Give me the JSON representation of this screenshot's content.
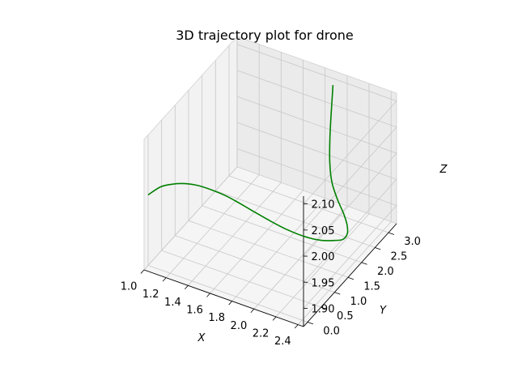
{
  "chart_data": {
    "type": "line",
    "title": "3D trajectory plot for drone",
    "xlabel": "X",
    "ylabel": "Y",
    "zlabel": "Z",
    "xlim": [
      1.0,
      2.45
    ],
    "ylim": [
      -0.15,
      3.3
    ],
    "zlim": [
      1.865,
      2.115
    ],
    "x_ticks": [
      "1.0",
      "1.2",
      "1.4",
      "1.6",
      "1.8",
      "2.0",
      "2.2",
      "2.4"
    ],
    "y_ticks": [
      "0.0",
      "0.5",
      "1.0",
      "1.5",
      "2.0",
      "2.5",
      "3.0"
    ],
    "z_ticks": [
      "1.90",
      "1.95",
      "2.00",
      "2.05",
      "2.10"
    ],
    "grid": true,
    "series": [
      {
        "color": "#008000",
        "points": [
          {
            "x": 1.0,
            "y": 0.0,
            "z": 2.0
          },
          {
            "x": 1.1,
            "y": 0.05,
            "z": 2.02
          },
          {
            "x": 1.2,
            "y": 0.1,
            "z": 2.03
          },
          {
            "x": 1.3,
            "y": 0.16,
            "z": 2.035
          },
          {
            "x": 1.4,
            "y": 0.24,
            "z": 2.034
          },
          {
            "x": 1.5,
            "y": 0.33,
            "z": 2.028
          },
          {
            "x": 1.6,
            "y": 0.44,
            "z": 2.018
          },
          {
            "x": 1.7,
            "y": 0.57,
            "z": 2.003
          },
          {
            "x": 1.8,
            "y": 0.72,
            "z": 1.985
          },
          {
            "x": 1.9,
            "y": 0.9,
            "z": 1.965
          },
          {
            "x": 2.0,
            "y": 1.1,
            "z": 1.945
          },
          {
            "x": 2.1,
            "y": 1.35,
            "z": 1.925
          },
          {
            "x": 2.18,
            "y": 1.6,
            "z": 1.91
          },
          {
            "x": 2.24,
            "y": 1.85,
            "z": 1.9
          },
          {
            "x": 2.27,
            "y": 2.05,
            "z": 1.893
          },
          {
            "x": 2.26,
            "y": 2.25,
            "z": 1.892
          },
          {
            "x": 2.22,
            "y": 2.4,
            "z": 1.897
          },
          {
            "x": 2.16,
            "y": 2.52,
            "z": 1.907
          },
          {
            "x": 2.08,
            "y": 2.62,
            "z": 1.922
          },
          {
            "x": 2.01,
            "y": 2.7,
            "z": 1.945
          },
          {
            "x": 1.97,
            "y": 2.78,
            "z": 1.975
          },
          {
            "x": 1.95,
            "y": 2.87,
            "z": 2.02
          },
          {
            "x": 1.945,
            "y": 2.96,
            "z": 2.08
          },
          {
            "x": 1.945,
            "y": 3.0,
            "z": 2.11
          }
        ]
      }
    ]
  }
}
